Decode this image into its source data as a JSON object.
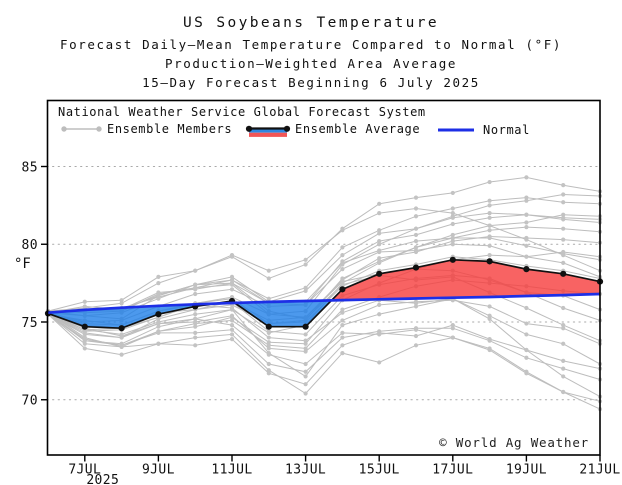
{
  "header": {
    "title": "US Soybeans Temperature",
    "subtitle1": "Forecast Daily–Mean Temperature Compared to Normal (°F)",
    "subtitle2": "Production–Weighted Area Average",
    "subtitle3": "15–Day Forecast Beginning 6 July 2025"
  },
  "legend": {
    "source_line": "National Weather Service Global Forecast System",
    "members_label": "Ensemble Members",
    "average_label": "Ensemble Average",
    "normal_label": "Normal"
  },
  "watermark": "© World Ag Weather",
  "colors": {
    "normal_line": "#1d2fe6",
    "ensemble_average_line": "#111111",
    "member_line": "#bdbdbd",
    "member_dot": "#c3c3c3",
    "above_normal_fill": "#f63c3c",
    "below_normal_fill": "#1f7fe8",
    "grid": "#a9a9a9",
    "axis": "#000000"
  },
  "chart_data": {
    "type": "line",
    "title": "US Soybeans Temperature — 15-Day Forecast Beginning 6 July 2025",
    "xlabel": "",
    "ylabel": "°F",
    "ylim": [
      66.5,
      89.3
    ],
    "grid": true,
    "legend_position": "top-left",
    "x_start_day": "6JUL",
    "x_tick_labels": [
      "7JUL",
      "9JUL",
      "11JUL",
      "13JUL",
      "15JUL",
      "17JUL",
      "19JUL",
      "21JUL"
    ],
    "x_tick_days": [
      1,
      3,
      5,
      7,
      9,
      11,
      13,
      15
    ],
    "x_year_label": "2025",
    "y_ticks": [
      70,
      75,
      80,
      85
    ],
    "series": {
      "normal": [
        75.6,
        75.78,
        75.92,
        76.04,
        76.14,
        76.22,
        76.29,
        76.35,
        76.41,
        76.46,
        76.51,
        76.56,
        76.61,
        76.67,
        76.73,
        76.8
      ],
      "ensemble_average": [
        75.55,
        74.7,
        74.6,
        75.5,
        76.0,
        76.35,
        74.7,
        74.7,
        77.1,
        78.1,
        78.5,
        79.0,
        78.9,
        78.4,
        78.1,
        77.6
      ],
      "members": [
        [
          75.6,
          74.6,
          74.1,
          74.9,
          75.2,
          74.8,
          72.9,
          72.3,
          74.3,
          74.2,
          74.5,
          74.0,
          73.2,
          71.7,
          70.5,
          69.4
        ],
        [
          75.5,
          73.3,
          72.9,
          73.6,
          73.5,
          73.9,
          71.7,
          71.0,
          73.5,
          74.3,
          74.1,
          74.8,
          73.9,
          73.2,
          72.5,
          72.0
        ],
        [
          75.7,
          76.3,
          76.4,
          77.9,
          78.3,
          79.2,
          77.8,
          78.7,
          81.0,
          82.6,
          83.0,
          83.3,
          84.0,
          84.3,
          83.8,
          83.4
        ],
        [
          75.6,
          75.4,
          75.2,
          76.7,
          77.4,
          77.7,
          76.5,
          77.2,
          79.8,
          80.9,
          81.8,
          82.3,
          82.8,
          83.0,
          82.7,
          82.6
        ],
        [
          75.5,
          74.2,
          74.0,
          75.2,
          75.8,
          76.1,
          74.9,
          75.1,
          77.8,
          78.9,
          79.8,
          80.4,
          80.9,
          81.1,
          81.0,
          80.8
        ],
        [
          75.7,
          75.8,
          75.9,
          76.6,
          77.2,
          77.4,
          75.5,
          75.3,
          77.6,
          78.1,
          78.4,
          78.3,
          77.7,
          76.9,
          75.9,
          75.1
        ],
        [
          75.5,
          73.6,
          73.4,
          74.4,
          74.7,
          75.3,
          73.7,
          73.6,
          76.4,
          77.5,
          78.4,
          79.0,
          79.3,
          79.2,
          79.5,
          79.2
        ],
        [
          75.6,
          75.0,
          75.1,
          76.0,
          76.8,
          77.1,
          76.0,
          76.1,
          78.9,
          80.2,
          80.6,
          81.3,
          81.7,
          81.9,
          81.6,
          81.4
        ],
        [
          75.5,
          74.3,
          74.0,
          74.9,
          75.0,
          75.4,
          73.3,
          73.1,
          75.1,
          76.1,
          76.3,
          76.4,
          76.0,
          74.9,
          74.6,
          73.6
        ],
        [
          75.7,
          75.6,
          75.7,
          76.8,
          77.2,
          77.7,
          76.2,
          76.3,
          78.8,
          79.6,
          80.2,
          80.4,
          80.4,
          79.9,
          79.4,
          79.0
        ],
        [
          75.6,
          73.8,
          73.5,
          74.4,
          74.9,
          75.1,
          73.5,
          73.3,
          75.8,
          76.6,
          77.3,
          77.7,
          77.5,
          77.3,
          77.0,
          76.8
        ],
        [
          75.5,
          75.1,
          74.8,
          75.7,
          76.1,
          75.9,
          74.0,
          73.8,
          75.6,
          76.4,
          76.2,
          76.5,
          75.4,
          74.2,
          73.6,
          72.3
        ],
        [
          75.6,
          74.5,
          74.6,
          75.3,
          76.1,
          76.3,
          75.1,
          75.3,
          77.7,
          79.1,
          79.5,
          80.2,
          80.5,
          80.4,
          80.3,
          80.1
        ],
        [
          75.7,
          75.4,
          75.6,
          76.5,
          77.4,
          77.9,
          76.3,
          77.0,
          79.3,
          80.7,
          81.0,
          81.7,
          82.0,
          81.9,
          81.7,
          81.6
        ],
        [
          75.5,
          73.9,
          73.5,
          74.3,
          74.3,
          74.5,
          72.3,
          71.8,
          74.0,
          74.4,
          74.6,
          74.6,
          73.8,
          72.7,
          72.0,
          71.3
        ],
        [
          75.6,
          75.7,
          75.8,
          76.7,
          77.4,
          77.5,
          76.2,
          76.1,
          78.4,
          79.5,
          79.6,
          80.0,
          79.9,
          79.2,
          78.8,
          77.9
        ],
        [
          75.5,
          73.8,
          73.6,
          74.7,
          75.2,
          75.8,
          74.3,
          74.8,
          77.5,
          78.8,
          79.8,
          80.6,
          81.2,
          81.4,
          81.9,
          81.8
        ],
        [
          75.6,
          74.8,
          74.6,
          75.6,
          75.8,
          76.3,
          74.4,
          74.2,
          76.7,
          77.4,
          77.8,
          78.0,
          77.8,
          76.9,
          76.7,
          75.8
        ],
        [
          75.5,
          74.4,
          74.5,
          75.3,
          76.2,
          76.6,
          75.5,
          75.7,
          78.7,
          80.0,
          81.0,
          81.8,
          82.5,
          82.8,
          83.2,
          83.1
        ],
        [
          75.6,
          76.0,
          75.8,
          76.9,
          77.1,
          77.5,
          75.7,
          75.2,
          77.4,
          78.0,
          77.7,
          77.9,
          76.9,
          75.9,
          74.8,
          73.8
        ],
        [
          75.6,
          74.0,
          73.4,
          73.6,
          74.0,
          74.2,
          71.9,
          70.4,
          73.0,
          72.4,
          73.5,
          74.0,
          73.3,
          71.8,
          70.5,
          69.9
        ],
        [
          75.7,
          75.9,
          76.2,
          77.5,
          78.3,
          79.3,
          78.3,
          79.0,
          80.9,
          82.0,
          82.3,
          82.0,
          81.2,
          80.3,
          79.3,
          78.3
        ],
        [
          75.6,
          74.9,
          74.8,
          75.7,
          76.2,
          76.5,
          74.9,
          75.0,
          77.3,
          78.3,
          78.7,
          79.2,
          79.0,
          78.6,
          78.3,
          77.8
        ],
        [
          75.5,
          74.5,
          74.2,
          75.0,
          75.5,
          75.8,
          73.0,
          71.5,
          74.8,
          75.5,
          76.0,
          76.5,
          75.2,
          73.2,
          71.5,
          70.2
        ]
      ]
    }
  }
}
